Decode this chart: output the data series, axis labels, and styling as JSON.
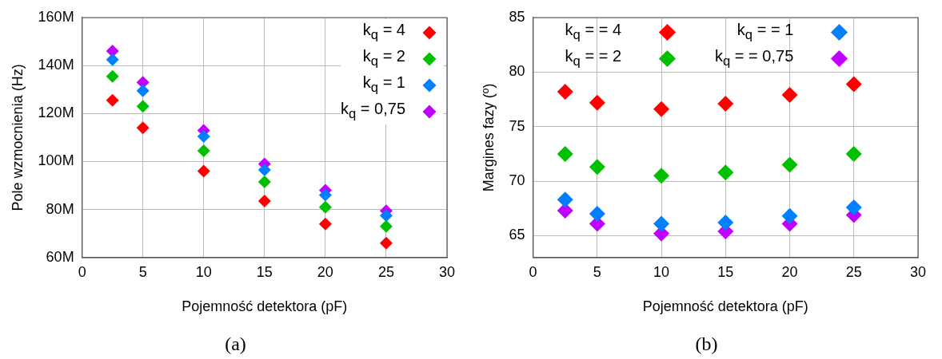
{
  "chart_data": [
    {
      "type": "scatter",
      "xlabel": "Pojemność detektora (pF)",
      "ylabel": "Pole wzmocnienia (Hz)",
      "annotations": [
        "(a)"
      ],
      "x": [
        2.5,
        5,
        10,
        15,
        20,
        25
      ],
      "xlim": [
        0,
        30
      ],
      "xticks": [
        0,
        5,
        10,
        15,
        20,
        25,
        30
      ],
      "ylim": [
        60000000,
        160000000
      ],
      "yticks": [
        {
          "value": 60000000,
          "label": "60M"
        },
        {
          "value": 80000000,
          "label": "80M"
        },
        {
          "value": 100000000,
          "label": "100M"
        },
        {
          "value": 120000000,
          "label": "120M"
        },
        {
          "value": 140000000,
          "label": "140M"
        },
        {
          "value": 160000000,
          "label": "160M"
        }
      ],
      "grid": true,
      "legend": "top right",
      "marker": "diamond",
      "series": [
        {
          "name": "k$_{q}$ = 4",
          "color": "#ff0000",
          "values": [
            125500000,
            114000000,
            96000000,
            83500000,
            74000000,
            66000000
          ]
        },
        {
          "name": "k$_{q}$ = 2",
          "color": "#00c000",
          "values": [
            135500000,
            123000000,
            104500000,
            91500000,
            81000000,
            73000000
          ]
        },
        {
          "name": "k$_{q}$ = 1",
          "color": "#0080ff",
          "values": [
            142500000,
            129500000,
            110500000,
            96500000,
            86000000,
            77500000
          ]
        },
        {
          "name": "k$_{q}$ = 0,75",
          "color": "#c000ff",
          "values": [
            146000000,
            133000000,
            113000000,
            99000000,
            88000000,
            79500000
          ]
        }
      ]
    },
    {
      "type": "scatter",
      "xlabel": "Pojemność detektora (pF)",
      "ylabel": "Margines fazy (º)",
      "annotations": [
        "(b)"
      ],
      "x": [
        2.5,
        5,
        10,
        15,
        20,
        25
      ],
      "xlim": [
        0,
        30
      ],
      "xticks": [
        0,
        5,
        10,
        15,
        20,
        25,
        30
      ],
      "ylim": [
        63,
        85
      ],
      "yticks": [
        65,
        70,
        75,
        80,
        85
      ],
      "grid": true,
      "legend": "top",
      "marker": "diamond",
      "series": [
        {
          "name": "k$_{q}$ = = 4",
          "color": "#ff0000",
          "values": [
            78.2,
            77.2,
            76.6,
            77.1,
            77.9,
            78.9
          ]
        },
        {
          "name": "k$_{q}$ = = 2",
          "color": "#00c000",
          "values": [
            72.5,
            71.3,
            70.5,
            70.8,
            71.5,
            72.5
          ]
        },
        {
          "name": "k$_{q}$ = = 1",
          "color": "#0080ff",
          "values": [
            68.3,
            67.0,
            66.1,
            66.2,
            66.8,
            67.6
          ]
        },
        {
          "name": "k$_{q}$ = = 0,75",
          "color": "#c000ff",
          "values": [
            67.3,
            66.1,
            65.2,
            65.4,
            66.1,
            66.9
          ]
        }
      ]
    }
  ]
}
